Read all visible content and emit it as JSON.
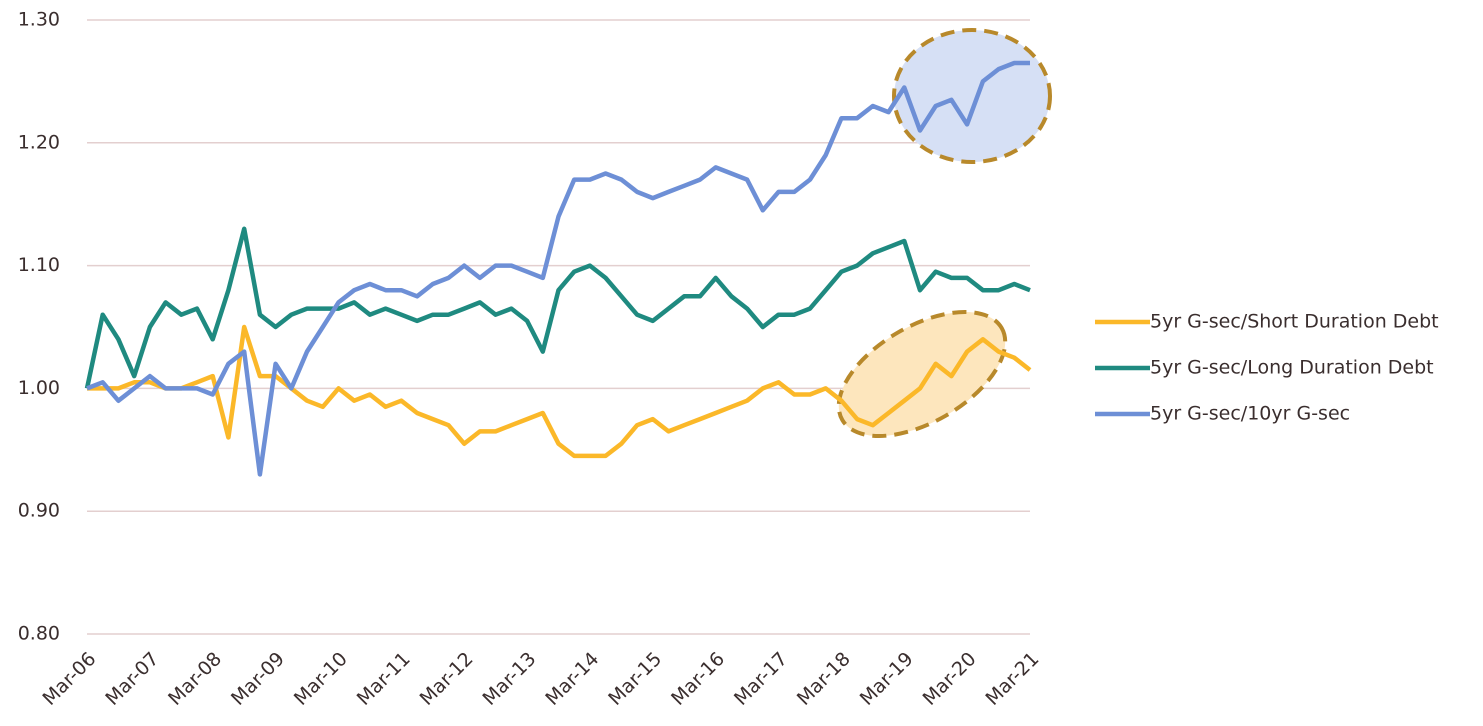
{
  "chart_data": {
    "type": "line",
    "categories": [
      "Mar-06",
      null,
      null,
      null,
      "Mar-07",
      null,
      null,
      null,
      "Mar-08",
      null,
      null,
      null,
      "Mar-09",
      null,
      null,
      null,
      "Mar-10",
      null,
      null,
      null,
      "Mar-11",
      null,
      null,
      null,
      "Mar-12",
      null,
      null,
      null,
      "Mar-13",
      null,
      null,
      null,
      "Mar-14",
      null,
      null,
      null,
      "Mar-15",
      null,
      null,
      null,
      "Mar-16",
      null,
      null,
      null,
      "Mar-17",
      null,
      null,
      null,
      "Mar-18",
      null,
      null,
      null,
      "Mar-19",
      null,
      null,
      null,
      "Mar-20",
      null,
      null,
      null,
      "Mar-21"
    ],
    "series": [
      {
        "name": "5yr G-sec/Short Duration Debt",
        "color": "#fbb829",
        "values": [
          1.0,
          1.0,
          1.0,
          1.005,
          1.005,
          1.0,
          1.0,
          1.005,
          1.01,
          0.96,
          1.05,
          1.01,
          1.01,
          1.0,
          0.99,
          0.985,
          1.0,
          0.99,
          0.995,
          0.985,
          0.99,
          0.98,
          0.975,
          0.97,
          0.955,
          0.965,
          0.965,
          0.97,
          0.975,
          0.98,
          0.955,
          0.945,
          0.945,
          0.945,
          0.955,
          0.97,
          0.975,
          0.965,
          0.97,
          0.975,
          0.98,
          0.985,
          0.99,
          1.0,
          1.005,
          0.995,
          0.995,
          1.0,
          0.99,
          0.975,
          0.97,
          0.98,
          0.99,
          1.0,
          1.02,
          1.01,
          1.03,
          1.04,
          1.03,
          1.025,
          1.015
        ]
      },
      {
        "name": "5yr G-sec/Long Duration Debt",
        "color": "#1f8a80",
        "values": [
          1.0,
          1.06,
          1.04,
          1.01,
          1.05,
          1.07,
          1.06,
          1.065,
          1.04,
          1.08,
          1.13,
          1.06,
          1.05,
          1.06,
          1.065,
          1.065,
          1.065,
          1.07,
          1.06,
          1.065,
          1.06,
          1.055,
          1.06,
          1.06,
          1.065,
          1.07,
          1.06,
          1.065,
          1.055,
          1.03,
          1.08,
          1.095,
          1.1,
          1.09,
          1.075,
          1.06,
          1.055,
          1.065,
          1.075,
          1.075,
          1.09,
          1.075,
          1.065,
          1.05,
          1.06,
          1.06,
          1.065,
          1.08,
          1.095,
          1.1,
          1.11,
          1.115,
          1.12,
          1.08,
          1.095,
          1.09,
          1.09,
          1.08,
          1.08,
          1.085,
          1.08
        ]
      },
      {
        "name": "5yr G-sec/10yr G-sec",
        "color": "#6d8fd6",
        "values": [
          1.0,
          1.005,
          0.99,
          1.0,
          1.01,
          1.0,
          1.0,
          1.0,
          0.995,
          1.02,
          1.03,
          0.93,
          1.02,
          1.0,
          1.03,
          1.05,
          1.07,
          1.08,
          1.085,
          1.08,
          1.08,
          1.075,
          1.085,
          1.09,
          1.1,
          1.09,
          1.1,
          1.1,
          1.095,
          1.09,
          1.14,
          1.17,
          1.17,
          1.175,
          1.17,
          1.16,
          1.155,
          1.16,
          1.165,
          1.17,
          1.18,
          1.175,
          1.17,
          1.145,
          1.16,
          1.16,
          1.17,
          1.19,
          1.22,
          1.22,
          1.23,
          1.225,
          1.245,
          1.21,
          1.23,
          1.235,
          1.215,
          1.25,
          1.26,
          1.265,
          1.265
        ]
      }
    ],
    "ylim": [
      0.8,
      1.3
    ],
    "yticks": [
      {
        "value": 0.8,
        "label": "0.80"
      },
      {
        "value": 0.9,
        "label": "0.90"
      },
      {
        "value": 1.0,
        "label": "1.00"
      },
      {
        "value": 1.1,
        "label": "1.10"
      },
      {
        "value": 1.2,
        "label": "1.20"
      },
      {
        "value": 1.3,
        "label": "1.30"
      }
    ],
    "grid": true,
    "legend": "right"
  }
}
